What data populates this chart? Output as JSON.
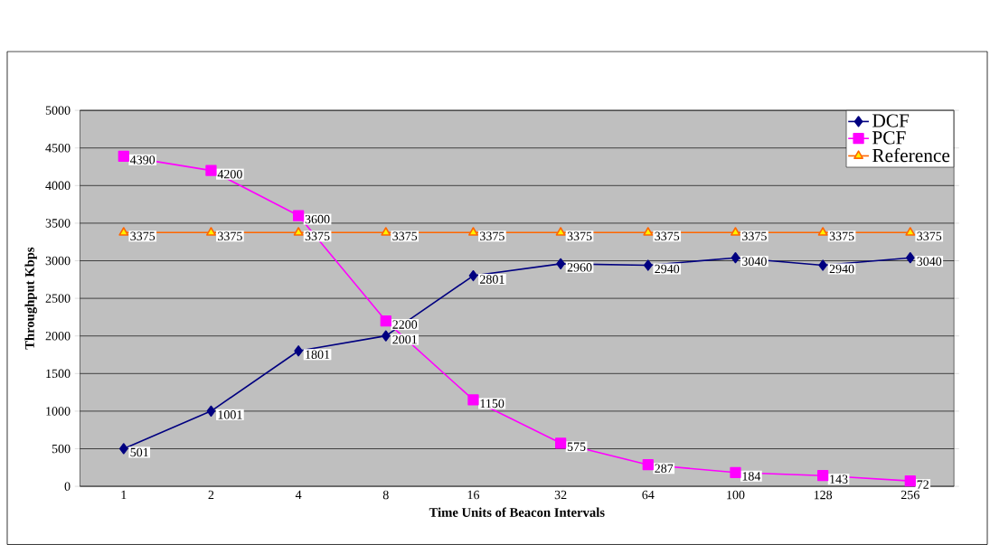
{
  "chart_data": {
    "type": "line",
    "xlabel": "Time Units of Beacon Intervals",
    "ylabel": "Throughput Kbps",
    "categories": [
      "1",
      "2",
      "4",
      "8",
      "16",
      "32",
      "64",
      "100",
      "128",
      "256"
    ],
    "series": [
      {
        "name": "DCF",
        "color": "#000080",
        "marker": "diamond",
        "values": [
          501,
          1001,
          1801,
          2001,
          2801,
          2960,
          2940,
          3040,
          2940,
          3040
        ]
      },
      {
        "name": "PCF",
        "color": "#ff00ff",
        "marker": "square",
        "values": [
          4390,
          4200,
          3600,
          2200,
          1150,
          575,
          287,
          184,
          143,
          72
        ]
      },
      {
        "name": "Reference",
        "color": "#ff6600",
        "marker": "triangle",
        "values": [
          3375,
          3375,
          3375,
          3375,
          3375,
          3375,
          3375,
          3375,
          3375,
          3375
        ]
      }
    ],
    "ylim": [
      0,
      5000
    ],
    "yticks": [
      0,
      500,
      1000,
      1500,
      2000,
      2500,
      3000,
      3500,
      4000,
      4500,
      5000
    ],
    "grid": "y",
    "legend": "top right",
    "data_labels": true,
    "line_style": "solid"
  }
}
